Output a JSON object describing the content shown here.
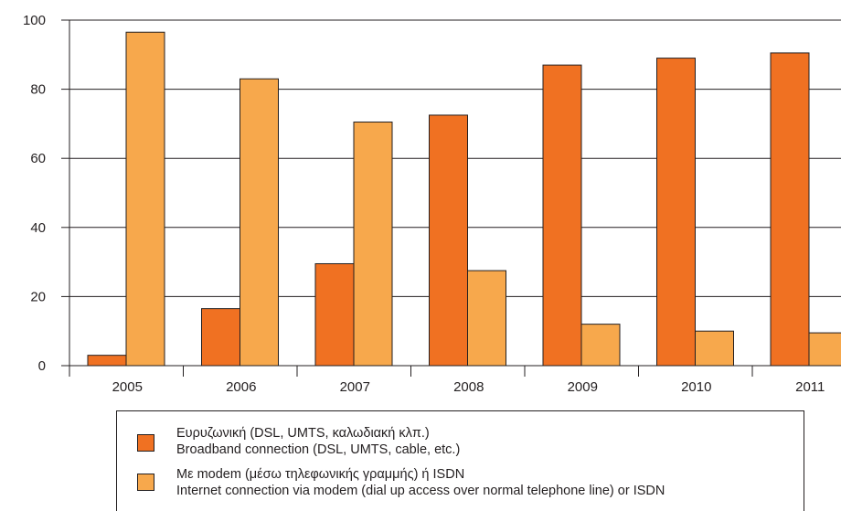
{
  "chart_data": {
    "type": "bar",
    "categories": [
      "2005",
      "2006",
      "2007",
      "2008",
      "2009",
      "2010",
      "2011"
    ],
    "series": [
      {
        "name": "Ευρυζωνική (DSL, UMTS, καλωδιακή κλπ.) / Broadband connection (DSL, UMTS, cable, etc.)",
        "color": "#f07122",
        "values": [
          3,
          16.5,
          29.5,
          72.5,
          87,
          89,
          90.5
        ]
      },
      {
        "name": "Με modem (μέσω τηλεφωνικής γραμμής) ή ISDN / Internet connection via modem (dial up access over normal telephone line) or ISDN",
        "color": "#f7a84c",
        "values": [
          96.5,
          83,
          70.5,
          27.5,
          12,
          10,
          9.5
        ]
      }
    ],
    "yticks": [
      "0",
      "20",
      "40",
      "60",
      "80",
      "100"
    ],
    "ylim": [
      0,
      100
    ],
    "grid": true,
    "legend_position": "bottom"
  },
  "legend": [
    {
      "line1": "Ευρυζωνική (DSL, UMTS, καλωδιακή κλπ.)",
      "line2": "Broadband connection (DSL, UMTS, cable, etc.)"
    },
    {
      "line1": "Με modem (μέσω τηλεφωνικής γραμμής) ή ISDN",
      "line2": "Internet connection via modem (dial up access over normal telephone line) or ISDN"
    }
  ]
}
